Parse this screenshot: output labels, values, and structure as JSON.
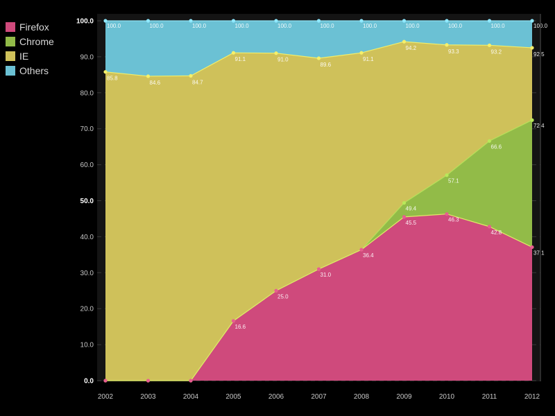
{
  "chart_data": {
    "type": "area",
    "stacked": "cumulative",
    "x": [
      "2002",
      "2003",
      "2004",
      "2005",
      "2006",
      "2007",
      "2008",
      "2009",
      "2010",
      "2011",
      "2012"
    ],
    "ylim": [
      0,
      100
    ],
    "yticks": [
      "0.0",
      "10.0",
      "20.0",
      "30.0",
      "40.0",
      "50.0",
      "60.0",
      "70.0",
      "80.0",
      "90.0",
      "100.0"
    ],
    "grid": true,
    "legend_position": "top-left",
    "series": [
      {
        "name": "Firefox",
        "color": "#cf4a7c",
        "values": [
          0,
          0,
          0,
          16.6,
          25.0,
          31.0,
          36.4,
          45.5,
          46.3,
          42.8,
          37.1
        ]
      },
      {
        "name": "Chrome",
        "color": "#92bb48",
        "values": [
          0,
          0,
          0,
          16.6,
          25.0,
          31.0,
          36.4,
          49.4,
          57.1,
          66.6,
          72.4
        ]
      },
      {
        "name": "IE",
        "color": "#cfc15a",
        "values": [
          85.8,
          84.6,
          84.7,
          91.1,
          91.0,
          89.6,
          91.1,
          94.2,
          93.3,
          93.2,
          92.5
        ]
      },
      {
        "name": "Others",
        "color": "#6bc1d4",
        "values": [
          100.0,
          100.0,
          100.0,
          100.0,
          100.0,
          100.0,
          100.0,
          100.0,
          100.0,
          100.0,
          100.0
        ]
      }
    ],
    "data_labels": [
      {
        "series": "Others",
        "labels": [
          "100.0",
          "100.0",
          "100.0",
          "100.0",
          "100.0",
          "100.0",
          "100.0",
          "100.0",
          "100.0",
          "100.0",
          "100.0"
        ]
      },
      {
        "series": "IE",
        "labels": [
          "85.8",
          "84.6",
          "84.7",
          "91.1",
          "91.0",
          "89.6",
          "91.1",
          "94.2",
          "93.3",
          "93.2",
          "92.5"
        ]
      },
      {
        "series": "Chrome",
        "labels": [
          "",
          "",
          "",
          "16.6",
          "25.0",
          "31.0",
          "36.4",
          "49.4",
          "57.1",
          "66.6",
          "72.4"
        ]
      },
      {
        "series": "Firefox",
        "labels": [
          "",
          "",
          "",
          "",
          "",
          "",
          "",
          "45.5",
          "46.3",
          "42.8",
          "37.1"
        ]
      }
    ]
  }
}
